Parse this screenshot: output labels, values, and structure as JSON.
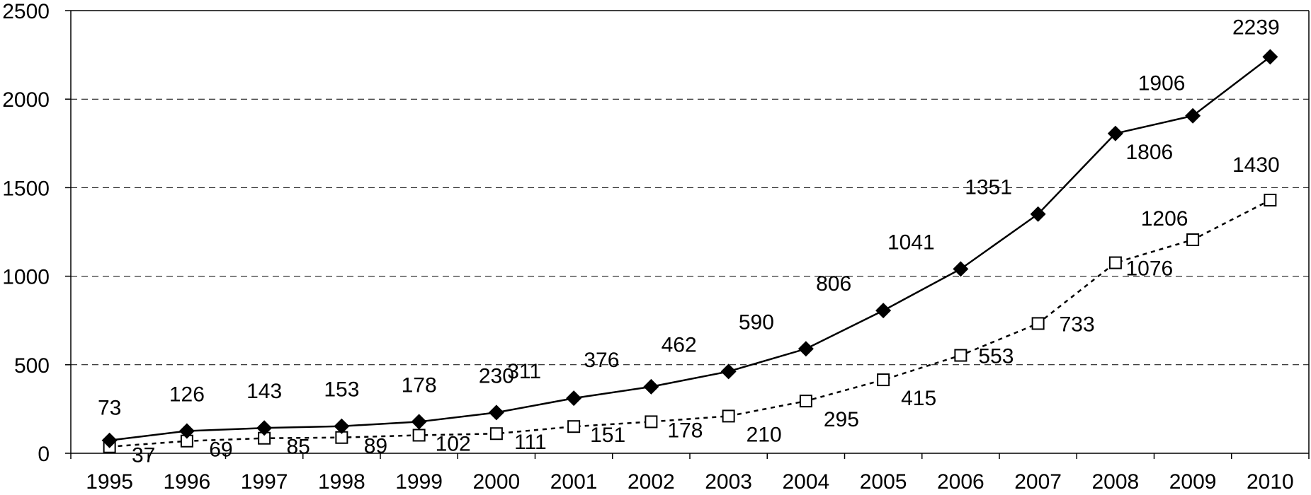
{
  "chart_data": {
    "type": "line",
    "categories": [
      "1995",
      "1996",
      "1997",
      "1998",
      "1999",
      "2000",
      "2001",
      "2002",
      "2003",
      "2004",
      "2005",
      "2006",
      "2007",
      "2008",
      "2009",
      "2010"
    ],
    "series": [
      {
        "values": [
          73,
          126,
          143,
          153,
          178,
          230,
          311,
          376,
          462,
          590,
          806,
          1041,
          1351,
          1806,
          1906,
          2239
        ],
        "marker": "filled-diamond",
        "line": "solid",
        "color": "#000000"
      },
      {
        "values": [
          37,
          69,
          85,
          89,
          102,
          111,
          151,
          178,
          210,
          295,
          415,
          553,
          733,
          1076,
          1206,
          1430
        ],
        "marker": "open-square",
        "line": "dotted",
        "color": "#000000"
      }
    ],
    "ylim": [
      0,
      2500
    ],
    "yticks": [
      0,
      500,
      1000,
      1500,
      2000,
      2500
    ],
    "grid": "horizontal-dashed",
    "legend": "none"
  }
}
